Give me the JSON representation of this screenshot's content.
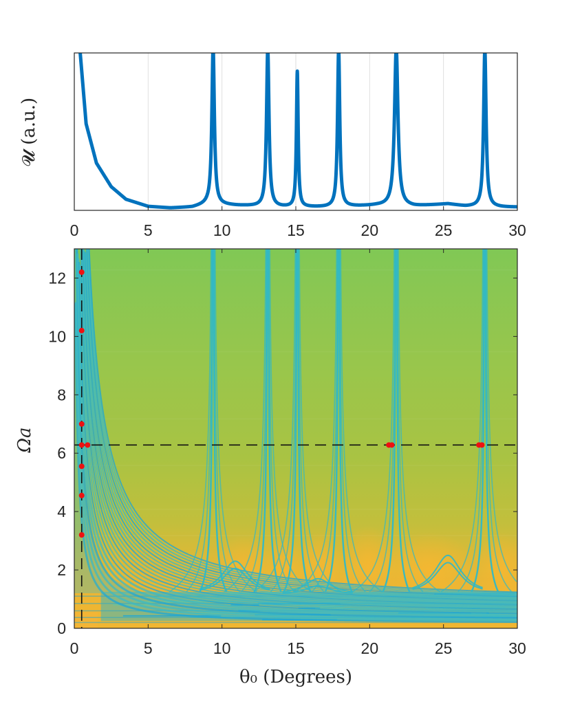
{
  "chart_data": [
    {
      "type": "line",
      "ylabel": "𝓤 (a.u.)",
      "xlabel": "",
      "xlim": [
        0,
        30
      ],
      "ylim": [
        0,
        1
      ],
      "x_ticks": [
        0,
        5,
        10,
        15,
        20,
        25,
        30
      ],
      "y_ticks": [],
      "grid": "vertical",
      "series_color": "#0072BD",
      "baseline": {
        "x": [
          0.4,
          0.8,
          1.5,
          2.5,
          3.5,
          5,
          6.5,
          8,
          9,
          10,
          11,
          12.5,
          14,
          16,
          17,
          19,
          20.5,
          23,
          25.3,
          26.5,
          29,
          30
        ],
        "y": [
          1.0,
          0.55,
          0.3,
          0.15,
          0.07,
          0.025,
          0.015,
          0.02,
          0.04,
          0.035,
          0.03,
          0.025,
          0.02,
          0.02,
          0.02,
          0.025,
          0.03,
          0.025,
          0.04,
          0.025,
          0.02,
          0.02
        ]
      },
      "peaks": [
        {
          "x": 9.4,
          "height": 1.0,
          "width": 0.1
        },
        {
          "x": 13.1,
          "height": 1.0,
          "width": 0.1
        },
        {
          "x": 15.1,
          "height": 0.86,
          "width": 0.07
        },
        {
          "x": 17.9,
          "height": 1.0,
          "width": 0.09
        },
        {
          "x": 21.8,
          "height": 1.0,
          "width": 0.14
        },
        {
          "x": 27.8,
          "height": 1.0,
          "width": 0.1
        }
      ]
    },
    {
      "type": "heatmap",
      "xlabel": "θ₀ (Degrees)",
      "ylabel": "Ωa",
      "xlim": [
        0,
        30
      ],
      "ylim": [
        0,
        13
      ],
      "x_ticks": [
        0,
        5,
        10,
        15,
        20,
        25,
        30
      ],
      "y_ticks": [
        0,
        2,
        4,
        6,
        8,
        10,
        12
      ],
      "colors": {
        "top": "#80c855",
        "mid": "#a3c545",
        "low": "#d9b93a",
        "hot": "#f2b532",
        "resonance": "#2fb8c8",
        "band": "#1da7d6",
        "marker": "#ee1111"
      },
      "resonance_angles": [
        9.4,
        13.1,
        15.1,
        17.9,
        21.8,
        27.8
      ],
      "secondary_humps": [
        {
          "x": 10.9,
          "y": 2.3
        },
        {
          "x": 16.5,
          "y": 1.7
        },
        {
          "x": 25.3,
          "y": 2.5
        }
      ],
      "dashed_horizontal_y": 6.28,
      "dashed_vertical_x": 0.5,
      "markers": [
        {
          "x": 0.5,
          "y": 12.2
        },
        {
          "x": 0.5,
          "y": 10.2
        },
        {
          "x": 0.5,
          "y": 7.0
        },
        {
          "x": 0.5,
          "y": 6.28
        },
        {
          "x": 0.9,
          "y": 6.28
        },
        {
          "x": 0.5,
          "y": 5.55
        },
        {
          "x": 0.5,
          "y": 4.55
        },
        {
          "x": 0.5,
          "y": 3.2
        },
        {
          "x": 21.3,
          "y": 6.28
        },
        {
          "x": 21.5,
          "y": 6.28
        },
        {
          "x": 27.4,
          "y": 6.28
        },
        {
          "x": 27.6,
          "y": 6.28
        }
      ]
    }
  ]
}
